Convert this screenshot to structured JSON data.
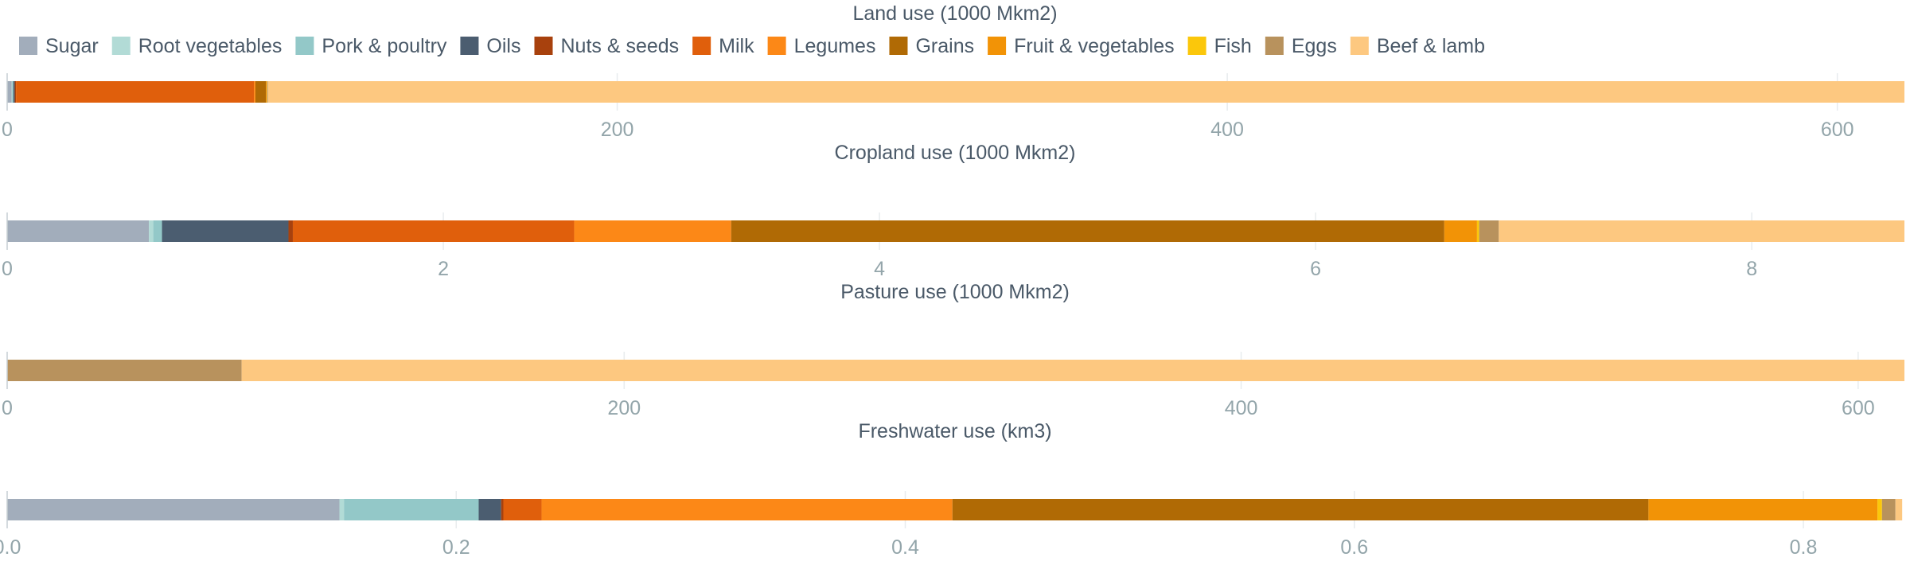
{
  "chart_data": {
    "type": "bar",
    "orientation": "horizontal",
    "stacked": true,
    "legend": {
      "placement": "top-left",
      "entries": [
        {
          "name": "Sugar",
          "color": "#a2adbb"
        },
        {
          "name": "Root vegetables",
          "color": "#b2dbd6"
        },
        {
          "name": "Pork & poultry",
          "color": "#93c8c8"
        },
        {
          "name": "Oils",
          "color": "#4b5d70"
        },
        {
          "name": "Nuts & seeds",
          "color": "#a8410d"
        },
        {
          "name": "Milk",
          "color": "#e05f0c"
        },
        {
          "name": "Legumes",
          "color": "#fc8817"
        },
        {
          "name": "Grains",
          "color": "#b06a05"
        },
        {
          "name": "Fruit & vegetables",
          "color": "#f29306"
        },
        {
          "name": "Fish",
          "color": "#fbc70b"
        },
        {
          "name": "Eggs",
          "color": "#b8925d"
        },
        {
          "name": "Beef & lamb",
          "color": "#fdc880"
        }
      ]
    },
    "panels": [
      {
        "title": "Land use (1000 Mkm2)",
        "xlim": [
          0,
          622
        ],
        "ticks": [
          0,
          200,
          400,
          600
        ],
        "tick_labels": [
          "0",
          "200",
          "400",
          "600"
        ],
        "segments": [
          {
            "series": "Sugar",
            "value": 1.5
          },
          {
            "series": "Root vegetables",
            "value": 0.2
          },
          {
            "series": "Pork & poultry",
            "value": 0.3
          },
          {
            "series": "Oils",
            "value": 0.5
          },
          {
            "series": "Nuts & seeds",
            "value": 0.4
          },
          {
            "series": "Milk",
            "value": 78
          },
          {
            "series": "Legumes",
            "value": 0.5
          },
          {
            "series": "Grains",
            "value": 3.4
          },
          {
            "series": "Fruit & vegetables",
            "value": 0.3
          },
          {
            "series": "Fish",
            "value": 0.1
          },
          {
            "series": "Eggs",
            "value": 0.3
          },
          {
            "series": "Beef & lamb",
            "value": 536.5
          }
        ]
      },
      {
        "title": "Cropland use (1000 Mkm2)",
        "xlim": [
          0,
          8.7
        ],
        "ticks": [
          0,
          2,
          4,
          6,
          8
        ],
        "tick_labels": [
          "0",
          "2",
          "4",
          "6",
          "8"
        ],
        "segments": [
          {
            "series": "Sugar",
            "value": 0.65
          },
          {
            "series": "Root vegetables",
            "value": 0.02
          },
          {
            "series": "Pork & poultry",
            "value": 0.04
          },
          {
            "series": "Oils",
            "value": 0.58
          },
          {
            "series": "Nuts & seeds",
            "value": 0.02
          },
          {
            "series": "Milk",
            "value": 1.29
          },
          {
            "series": "Legumes",
            "value": 0.72
          },
          {
            "series": "Grains",
            "value": 3.27
          },
          {
            "series": "Fruit & vegetables",
            "value": 0.15
          },
          {
            "series": "Fish",
            "value": 0.01
          },
          {
            "series": "Eggs",
            "value": 0.09
          },
          {
            "series": "Beef & lamb",
            "value": 1.86
          }
        ]
      },
      {
        "title": "Pasture use (1000 Mkm2)",
        "xlim": [
          0,
          615
        ],
        "ticks": [
          0,
          200,
          400,
          600
        ],
        "tick_labels": [
          "0",
          "200",
          "400",
          "600"
        ],
        "segments": [
          {
            "series": "Eggs",
            "value": 76
          },
          {
            "series": "Beef & lamb",
            "value": 539
          }
        ]
      },
      {
        "title": "Freshwater use (km3)",
        "xlim": [
          0,
          0.845
        ],
        "ticks": [
          0,
          0.2,
          0.4,
          0.6,
          0.8
        ],
        "tick_labels": [
          "0.0",
          "0.2",
          "0.4",
          "0.6",
          "0.8"
        ],
        "segments": [
          {
            "series": "Sugar",
            "value": 0.148
          },
          {
            "series": "Root vegetables",
            "value": 0.002
          },
          {
            "series": "Pork & poultry",
            "value": 0.06
          },
          {
            "series": "Oils",
            "value": 0.01
          },
          {
            "series": "Nuts & seeds",
            "value": 0.001
          },
          {
            "series": "Milk",
            "value": 0.017
          },
          {
            "series": "Legumes",
            "value": 0.183
          },
          {
            "series": "Grains",
            "value": 0.31
          },
          {
            "series": "Fruit & vegetables",
            "value": 0.102
          },
          {
            "series": "Fish",
            "value": 0.002
          },
          {
            "series": "Eggs",
            "value": 0.006
          },
          {
            "series": "Beef & lamb",
            "value": 0.003
          }
        ]
      }
    ]
  }
}
